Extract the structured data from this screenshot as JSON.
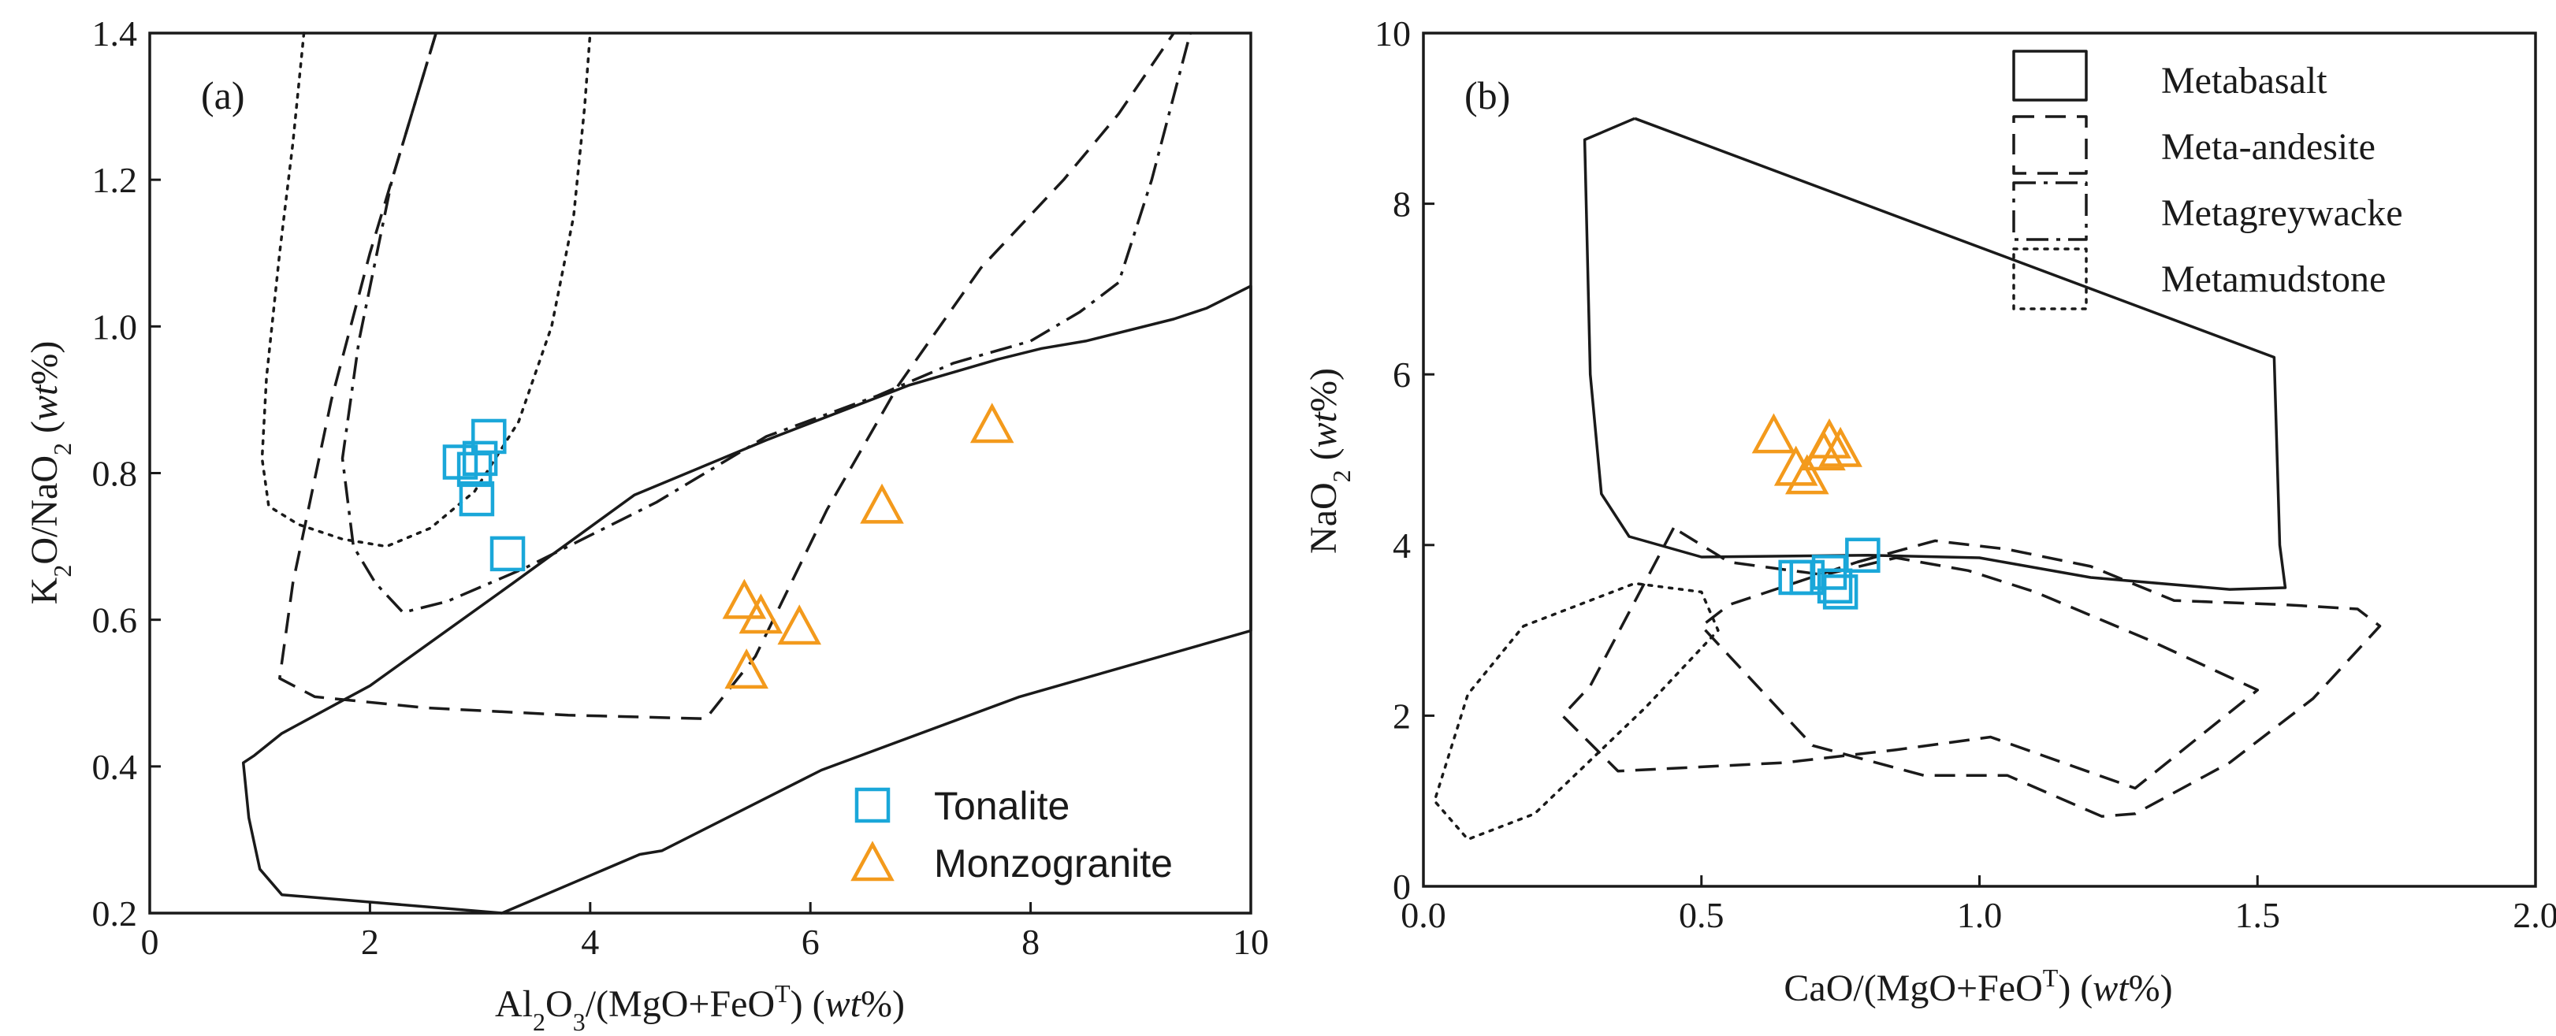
{
  "chart_data": [
    {
      "type": "scatter",
      "panel_label": "(a)",
      "xlabel": "Al2O3/(MgO+FeOT) (wt%)",
      "ylabel": "K2O/NaO2 (wt%)",
      "xlim": [
        0,
        10
      ],
      "ylim": [
        0.2,
        1.4
      ],
      "x_ticks": [
        "0",
        "2",
        "4",
        "6",
        "8",
        "10"
      ],
      "y_ticks": [
        "0.2",
        "0.4",
        "0.6",
        "0.8",
        "1.0",
        "1.2",
        "1.4"
      ],
      "legend_position": "bottom-right",
      "series": [
        {
          "name": "Tonalite",
          "marker": "square",
          "color": "#1aa7d9",
          "points": [
            [
              2.82,
              0.815
            ],
            [
              3.0,
              0.82
            ],
            [
              2.95,
              0.805
            ],
            [
              3.08,
              0.85
            ],
            [
              2.97,
              0.765
            ],
            [
              3.25,
              0.69
            ]
          ]
        },
        {
          "name": "Monzogranite",
          "marker": "triangle",
          "color": "#f39a1c",
          "points": [
            [
              5.4,
              0.625
            ],
            [
              5.55,
              0.605
            ],
            [
              5.9,
              0.59
            ],
            [
              5.42,
              0.53
            ],
            [
              6.65,
              0.755
            ],
            [
              7.65,
              0.865
            ]
          ]
        }
      ],
      "fields": [
        {
          "style": "solid",
          "points": [
            [
              3.2,
              0.2
            ],
            [
              4.45,
              0.28
            ],
            [
              4.65,
              0.285
            ],
            [
              6.1,
              0.395
            ],
            [
              7.9,
              0.495
            ],
            [
              10.0,
              0.585
            ],
            [
              10.0,
              1.055
            ],
            [
              9.6,
              1.025
            ],
            [
              9.3,
              1.01
            ],
            [
              8.5,
              0.98
            ],
            [
              8.1,
              0.97
            ],
            [
              7.7,
              0.955
            ],
            [
              6.9,
              0.92
            ],
            [
              5.6,
              0.845
            ],
            [
              4.4,
              0.77
            ],
            [
              3.3,
              0.65
            ],
            [
              2.0,
              0.51
            ],
            [
              1.2,
              0.445
            ],
            [
              0.95,
              0.415
            ],
            [
              0.85,
              0.405
            ],
            [
              0.9,
              0.33
            ],
            [
              1.0,
              0.26
            ],
            [
              1.2,
              0.225
            ],
            [
              2.0,
              0.215
            ],
            [
              3.2,
              0.2
            ]
          ]
        },
        {
          "style": "dashed",
          "points": [
            [
              2.6,
              1.4
            ],
            [
              2.3,
              1.25
            ],
            [
              2.0,
              1.1
            ],
            [
              1.65,
              0.9
            ],
            [
              1.3,
              0.65
            ],
            [
              1.18,
              0.52
            ],
            [
              1.5,
              0.495
            ],
            [
              2.5,
              0.48
            ],
            [
              3.8,
              0.47
            ],
            [
              5.05,
              0.465
            ],
            [
              5.5,
              0.55
            ],
            [
              6.15,
              0.75
            ],
            [
              6.8,
              0.92
            ],
            [
              7.55,
              1.08
            ],
            [
              8.3,
              1.2
            ],
            [
              8.8,
              1.29
            ],
            [
              9.3,
              1.4
            ]
          ]
        },
        {
          "style": "dash-dot",
          "points": [
            [
              2.6,
              1.4
            ],
            [
              2.2,
              1.2
            ],
            [
              1.9,
              0.98
            ],
            [
              1.75,
              0.82
            ],
            [
              1.85,
              0.7
            ],
            [
              2.05,
              0.65
            ],
            [
              2.3,
              0.61
            ],
            [
              2.7,
              0.625
            ],
            [
              3.4,
              0.67
            ],
            [
              4.6,
              0.76
            ],
            [
              5.6,
              0.85
            ],
            [
              6.6,
              0.905
            ],
            [
              7.3,
              0.95
            ],
            [
              8.0,
              0.98
            ],
            [
              8.45,
              1.02
            ],
            [
              8.8,
              1.06
            ],
            [
              9.1,
              1.2
            ],
            [
              9.45,
              1.4
            ]
          ]
        },
        {
          "style": "dotted",
          "points": [
            [
              1.4,
              1.4
            ],
            [
              1.3,
              1.25
            ],
            [
              1.18,
              1.1
            ],
            [
              1.06,
              0.93
            ],
            [
              1.02,
              0.82
            ],
            [
              1.08,
              0.755
            ],
            [
              1.35,
              0.73
            ],
            [
              1.75,
              0.71
            ],
            [
              2.15,
              0.7
            ],
            [
              2.55,
              0.725
            ],
            [
              2.95,
              0.775
            ],
            [
              3.35,
              0.87
            ],
            [
              3.65,
              1.0
            ],
            [
              3.85,
              1.15
            ],
            [
              3.95,
              1.3
            ],
            [
              4.0,
              1.4
            ]
          ]
        }
      ],
      "legend": [
        {
          "label": "Tonalite",
          "color": "#1aa7d9",
          "marker": "square"
        },
        {
          "label": "Monzogranite",
          "color": "#f39a1c",
          "marker": "triangle"
        }
      ]
    },
    {
      "type": "scatter",
      "panel_label": "(b)",
      "xlabel": "CaO/(MgO+FeOT) (wt%)",
      "ylabel": "NaO2 (wt%)",
      "xlim": [
        0,
        2
      ],
      "ylim": [
        0,
        10
      ],
      "x_ticks": [
        "0.0",
        "0.5",
        "1.0",
        "1.5",
        "2.0"
      ],
      "y_ticks": [
        "0",
        "2",
        "4",
        "6",
        "8",
        "10"
      ],
      "legend_position": "top-right",
      "series": [
        {
          "name": "Tonalite",
          "marker": "square",
          "color": "#1aa7d9",
          "points": [
            [
              0.67,
              3.62
            ],
            [
              0.69,
              3.62
            ],
            [
              0.73,
              3.68
            ],
            [
              0.74,
              3.52
            ],
            [
              0.75,
              3.45
            ],
            [
              0.79,
              3.88
            ]
          ]
        },
        {
          "name": "Monzogranite",
          "marker": "triangle",
          "color": "#f39a1c",
          "points": [
            [
              0.63,
              5.28
            ],
            [
              0.67,
              4.9
            ],
            [
              0.69,
              4.8
            ],
            [
              0.72,
              5.08
            ],
            [
              0.73,
              5.22
            ],
            [
              0.75,
              5.12
            ]
          ]
        }
      ],
      "fields": [
        {
          "style": "solid",
          "points": [
            [
              0.38,
              9.0
            ],
            [
              1.53,
              6.2
            ],
            [
              1.54,
              4.0
            ],
            [
              1.55,
              3.5
            ],
            [
              1.45,
              3.48
            ],
            [
              1.2,
              3.62
            ],
            [
              1.0,
              3.85
            ],
            [
              0.8,
              3.88
            ],
            [
              0.5,
              3.86
            ],
            [
              0.37,
              4.1
            ],
            [
              0.32,
              4.6
            ],
            [
              0.3,
              6.0
            ],
            [
              0.29,
              8.75
            ],
            [
              0.38,
              9.0
            ]
          ]
        },
        {
          "style": "dashed",
          "points": [
            [
              0.45,
              4.2
            ],
            [
              0.3,
              2.35
            ],
            [
              0.25,
              2.0
            ],
            [
              0.35,
              1.35
            ],
            [
              0.5,
              1.4
            ],
            [
              0.65,
              1.45
            ],
            [
              0.85,
              1.6
            ],
            [
              1.02,
              1.75
            ],
            [
              1.15,
              1.45
            ],
            [
              1.28,
              1.15
            ],
            [
              1.5,
              2.3
            ],
            [
              1.3,
              2.9
            ],
            [
              1.1,
              3.45
            ],
            [
              0.98,
              3.7
            ],
            [
              0.85,
              3.85
            ],
            [
              0.72,
              3.65
            ],
            [
              0.55,
              3.8
            ],
            [
              0.45,
              4.2
            ]
          ]
        },
        {
          "style": "dashed",
          "points": [
            [
              0.78,
              3.8
            ],
            [
              0.92,
              4.05
            ],
            [
              1.05,
              3.95
            ],
            [
              1.2,
              3.75
            ],
            [
              1.35,
              3.35
            ],
            [
              1.55,
              3.3
            ],
            [
              1.68,
              3.25
            ],
            [
              1.72,
              3.05
            ],
            [
              1.6,
              2.2
            ],
            [
              1.45,
              1.45
            ],
            [
              1.28,
              0.85
            ],
            [
              1.22,
              0.82
            ],
            [
              1.05,
              1.3
            ],
            [
              0.9,
              1.3
            ],
            [
              0.7,
              1.65
            ],
            [
              0.5,
              3.05
            ],
            [
              0.55,
              3.3
            ],
            [
              0.78,
              3.8
            ]
          ]
        },
        {
          "style": "dotted",
          "points": [
            [
              0.18,
              3.05
            ],
            [
              0.38,
              3.55
            ],
            [
              0.5,
              3.45
            ],
            [
              0.53,
              3.0
            ],
            [
              0.4,
              2.1
            ],
            [
              0.2,
              0.85
            ],
            [
              0.08,
              0.55
            ],
            [
              0.02,
              1.0
            ],
            [
              0.08,
              2.25
            ],
            [
              0.18,
              3.05
            ]
          ]
        }
      ],
      "legend": [
        {
          "label": "Metabasalt",
          "style": "solid"
        },
        {
          "label": "Meta-andesite",
          "style": "dashed"
        },
        {
          "label": "Metagreywacke",
          "style": "dash-dot"
        },
        {
          "label": "Metamudstone",
          "style": "dotted"
        }
      ]
    }
  ]
}
